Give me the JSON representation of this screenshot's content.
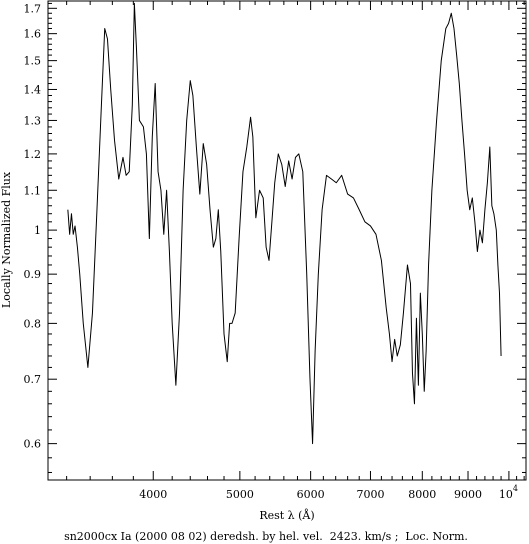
{
  "chart_data": {
    "type": "line",
    "title": "",
    "caption": "sn2000cx Ia (2000 08 02) deredsh. by hel. vel.  2423. km/s ;  Loc. Norm.",
    "xlabel": "Rest λ (Å)",
    "ylabel": "Locally Normalized Flux",
    "x_scale": "log",
    "y_scale": "log",
    "xlim": [
      3050,
      10450
    ],
    "ylim": [
      0.55,
      1.73
    ],
    "x_ticks": [
      {
        "value": 4000,
        "label": "4000"
      },
      {
        "value": 5000,
        "label": "5000"
      },
      {
        "value": 6000,
        "label": "6000"
      },
      {
        "value": 7000,
        "label": "7000"
      },
      {
        "value": 8000,
        "label": "8000"
      },
      {
        "value": 9000,
        "label": "9000"
      },
      {
        "value": 10000,
        "label": "10",
        "exponent": "4"
      }
    ],
    "y_ticks": [
      {
        "value": 0.6,
        "label": "0.6"
      },
      {
        "value": 0.7,
        "label": "0.7"
      },
      {
        "value": 0.8,
        "label": "0.8"
      },
      {
        "value": 0.9,
        "label": "0.9"
      },
      {
        "value": 1.0,
        "label": "1"
      },
      {
        "value": 1.1,
        "label": "1.1"
      },
      {
        "value": 1.2,
        "label": "1.2"
      },
      {
        "value": 1.3,
        "label": "1.3"
      },
      {
        "value": 1.4,
        "label": "1.4"
      },
      {
        "value": 1.5,
        "label": "1.5"
      },
      {
        "value": 1.6,
        "label": "1.6"
      },
      {
        "value": 1.7,
        "label": "1.7"
      }
    ],
    "grid": false,
    "series": [
      {
        "name": "",
        "color": "#000000",
        "points": [
          [
            3210,
            1.05
          ],
          [
            3225,
            0.99
          ],
          [
            3240,
            1.04
          ],
          [
            3255,
            0.99
          ],
          [
            3270,
            1.01
          ],
          [
            3290,
            0.96
          ],
          [
            3310,
            0.9
          ],
          [
            3340,
            0.8
          ],
          [
            3380,
            0.72
          ],
          [
            3420,
            0.82
          ],
          [
            3460,
            1.05
          ],
          [
            3500,
            1.35
          ],
          [
            3530,
            1.62
          ],
          [
            3555,
            1.58
          ],
          [
            3585,
            1.4
          ],
          [
            3620,
            1.24
          ],
          [
            3660,
            1.13
          ],
          [
            3700,
            1.19
          ],
          [
            3730,
            1.14
          ],
          [
            3760,
            1.15
          ],
          [
            3790,
            1.35
          ],
          [
            3810,
            1.72
          ],
          [
            3830,
            1.55
          ],
          [
            3860,
            1.3
          ],
          [
            3900,
            1.28
          ],
          [
            3930,
            1.2
          ],
          [
            3960,
            0.98
          ],
          [
            3990,
            1.25
          ],
          [
            4020,
            1.42
          ],
          [
            4050,
            1.15
          ],
          [
            4080,
            1.1
          ],
          [
            4110,
            0.99
          ],
          [
            4140,
            1.1
          ],
          [
            4170,
            0.95
          ],
          [
            4200,
            0.8
          ],
          [
            4240,
            0.69
          ],
          [
            4280,
            0.82
          ],
          [
            4320,
            1.1
          ],
          [
            4360,
            1.3
          ],
          [
            4400,
            1.43
          ],
          [
            4430,
            1.38
          ],
          [
            4470,
            1.22
          ],
          [
            4510,
            1.09
          ],
          [
            4550,
            1.23
          ],
          [
            4590,
            1.17
          ],
          [
            4630,
            1.05
          ],
          [
            4670,
            0.96
          ],
          [
            4700,
            0.98
          ],
          [
            4730,
            1.05
          ],
          [
            4760,
            0.95
          ],
          [
            4800,
            0.78
          ],
          [
            4840,
            0.73
          ],
          [
            4870,
            0.8
          ],
          [
            4900,
            0.8
          ],
          [
            4940,
            0.82
          ],
          [
            4990,
            0.98
          ],
          [
            5040,
            1.15
          ],
          [
            5090,
            1.22
          ],
          [
            5140,
            1.31
          ],
          [
            5170,
            1.25
          ],
          [
            5210,
            1.03
          ],
          [
            5260,
            1.1
          ],
          [
            5310,
            1.08
          ],
          [
            5350,
            0.96
          ],
          [
            5390,
            0.93
          ],
          [
            5430,
            1.02
          ],
          [
            5470,
            1.12
          ],
          [
            5520,
            1.2
          ],
          [
            5570,
            1.17
          ],
          [
            5620,
            1.11
          ],
          [
            5670,
            1.18
          ],
          [
            5720,
            1.13
          ],
          [
            5770,
            1.19
          ],
          [
            5820,
            1.2
          ],
          [
            5880,
            1.15
          ],
          [
            5940,
            0.9
          ],
          [
            5990,
            0.7
          ],
          [
            6030,
            0.6
          ],
          [
            6070,
            0.75
          ],
          [
            6120,
            0.9
          ],
          [
            6180,
            1.05
          ],
          [
            6250,
            1.14
          ],
          [
            6330,
            1.13
          ],
          [
            6410,
            1.12
          ],
          [
            6500,
            1.14
          ],
          [
            6600,
            1.09
          ],
          [
            6700,
            1.08
          ],
          [
            6800,
            1.05
          ],
          [
            6900,
            1.02
          ],
          [
            7000,
            1.01
          ],
          [
            7100,
            0.99
          ],
          [
            7200,
            0.93
          ],
          [
            7290,
            0.83
          ],
          [
            7350,
            0.78
          ],
          [
            7400,
            0.73
          ],
          [
            7450,
            0.77
          ],
          [
            7500,
            0.74
          ],
          [
            7560,
            0.76
          ],
          [
            7620,
            0.82
          ],
          [
            7700,
            0.92
          ],
          [
            7760,
            0.88
          ],
          [
            7800,
            0.71
          ],
          [
            7840,
            0.66
          ],
          [
            7880,
            0.81
          ],
          [
            7920,
            0.69
          ],
          [
            7960,
            0.86
          ],
          [
            8000,
            0.78
          ],
          [
            8040,
            0.68
          ],
          [
            8080,
            0.75
          ],
          [
            8130,
            0.92
          ],
          [
            8200,
            1.1
          ],
          [
            8300,
            1.3
          ],
          [
            8400,
            1.5
          ],
          [
            8500,
            1.62
          ],
          [
            8560,
            1.64
          ],
          [
            8620,
            1.68
          ],
          [
            8680,
            1.62
          ],
          [
            8740,
            1.52
          ],
          [
            8800,
            1.42
          ],
          [
            8860,
            1.3
          ],
          [
            8920,
            1.2
          ],
          [
            8980,
            1.1
          ],
          [
            9040,
            1.05
          ],
          [
            9100,
            1.08
          ],
          [
            9160,
            1.02
          ],
          [
            9220,
            0.95
          ],
          [
            9280,
            1.0
          ],
          [
            9340,
            0.97
          ],
          [
            9400,
            1.05
          ],
          [
            9460,
            1.12
          ],
          [
            9520,
            1.22
          ],
          [
            9570,
            1.06
          ],
          [
            9620,
            1.04
          ],
          [
            9680,
            1.0
          ],
          [
            9720,
            0.92
          ],
          [
            9760,
            0.86
          ],
          [
            9800,
            0.74
          ]
        ]
      }
    ]
  }
}
